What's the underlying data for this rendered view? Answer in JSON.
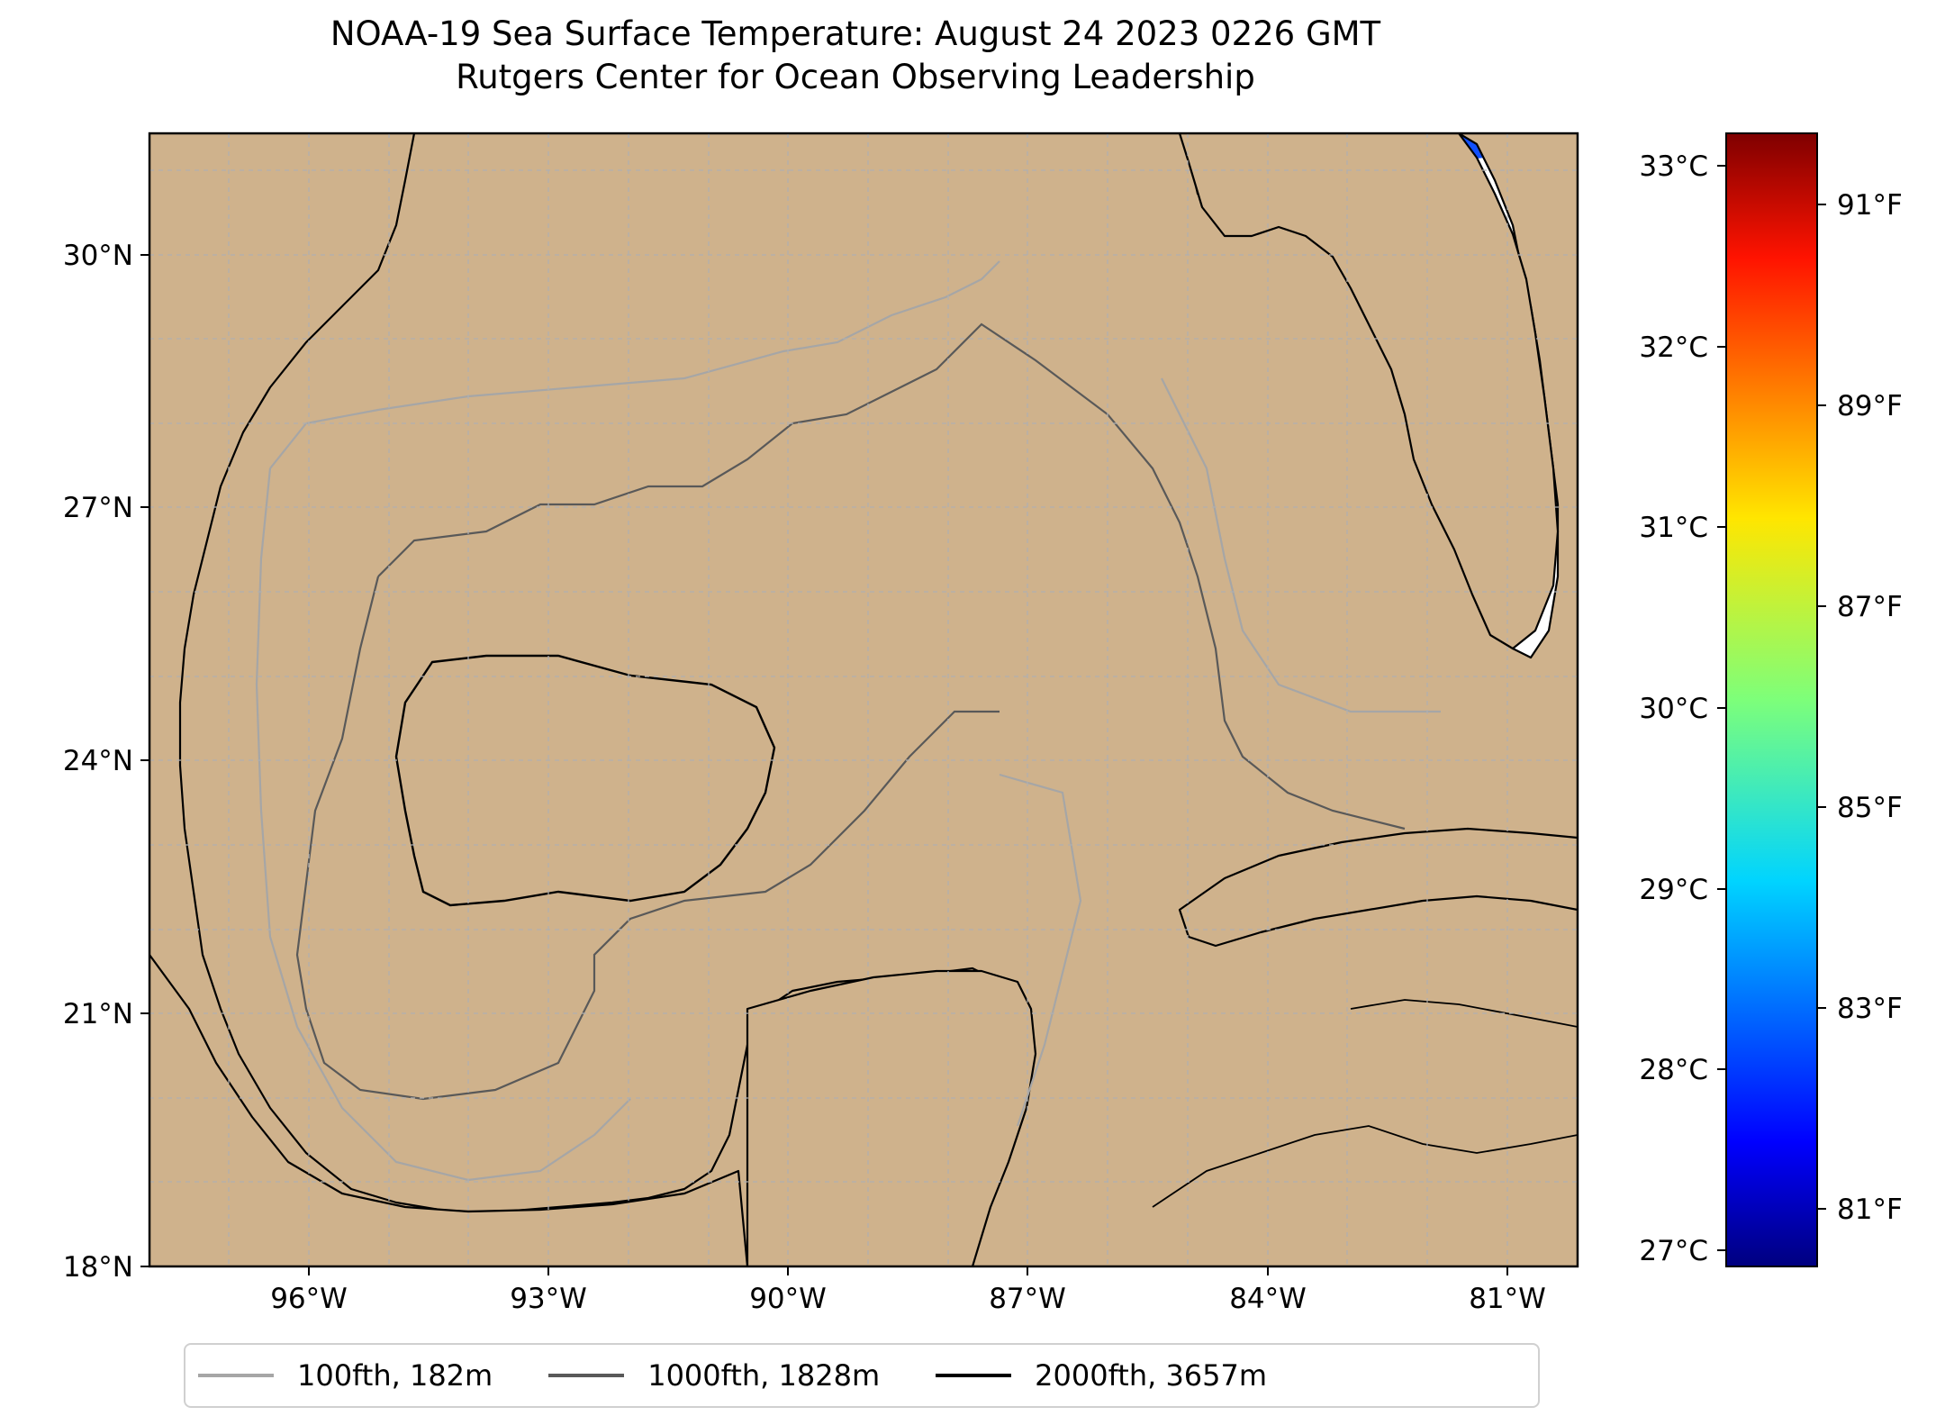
{
  "title": {
    "line1": "NOAA-19 Sea Surface Temperature: August 24 2023 0226 GMT",
    "line2": "Rutgers Center for Ocean Observing Leadership"
  },
  "map": {
    "lon_range": [
      -98,
      -80.2
    ],
    "lat_range": [
      18,
      31
    ],
    "lat_ticks": [
      "18°N",
      "21°N",
      "24°N",
      "27°N",
      "30°N"
    ],
    "lon_ticks": [
      "96°W",
      "93°W",
      "90°W",
      "87°W",
      "84°W",
      "81°W"
    ],
    "grid": "dashed",
    "land_color": "#cfb28c",
    "no_data_color": "#ffffff"
  },
  "colorbar": {
    "colormap": "jet",
    "range_c": [
      26.9,
      33.2
    ],
    "celsius_ticks": [
      "27°C",
      "28°C",
      "29°C",
      "30°C",
      "31°C",
      "32°C",
      "33°C"
    ],
    "fahrenheit_ticks": [
      "81°F",
      "83°F",
      "85°F",
      "87°F",
      "89°F",
      "91°F"
    ]
  },
  "legend": {
    "placement": "bottom-center",
    "items": [
      {
        "label": "100fth, 182m",
        "color": "#a6a6a6"
      },
      {
        "label": "1000fth, 1828m",
        "color": "#595959"
      },
      {
        "label": "2000fth, 3657m",
        "color": "#000000"
      }
    ]
  }
}
